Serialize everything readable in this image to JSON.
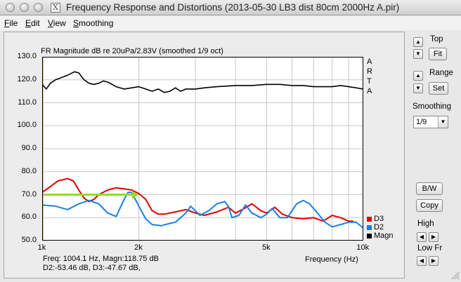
{
  "window": {
    "app_icon": "X",
    "title": "Frequency Response and Distortions (2013-05-30 LB3 dist 80cm 2000Hz A.pir)"
  },
  "menu": [
    {
      "key": "F",
      "rest": "ile"
    },
    {
      "key": "E",
      "rest": "dit"
    },
    {
      "key": "V",
      "rest": "iew"
    },
    {
      "key": "S",
      "rest": "moothing"
    }
  ],
  "plot_header": "FR Magnitude dB re 20uPa/2.83V (smoothed 1/9 oct)",
  "arta": [
    "A",
    "R",
    "T",
    "A"
  ],
  "legend": [
    {
      "label": "D3",
      "color": "#e00000"
    },
    {
      "label": "D2",
      "color": "#1a7fe0"
    },
    {
      "label": "Magn",
      "color": "#000000"
    }
  ],
  "readout": {
    "line1": "Freq: 1004.1 Hz, Magn:118.75 dB",
    "line2": "D2:-53.46 dB, D3:-47.67 dB,"
  },
  "x_axis_title": "Frequency (Hz)",
  "controls": {
    "top_label": "Top",
    "fit_button": "Fit",
    "range_label": "Range",
    "set_button": "Set",
    "smoothing_label": "Smoothing",
    "smoothing_value": "1/9",
    "bw_button": "B/W",
    "copy_button": "Copy",
    "high_label": "High",
    "low_label": "Low Fr"
  },
  "chart_data": {
    "type": "line",
    "title": "FR Magnitude dB re 20uPa/2.83V (smoothed 1/9 oct)",
    "xlabel": "Frequency (Hz)",
    "ylabel": "",
    "xscale": "log",
    "xlim": [
      1000,
      10000
    ],
    "ylim": [
      50,
      130
    ],
    "yticks": [
      50,
      60,
      70,
      80,
      90,
      100,
      110,
      120,
      130
    ],
    "ytick_labels": [
      "50.0",
      "60.0",
      "70.0",
      "80.0",
      "90.0",
      "100.0",
      "110.0",
      "120.0",
      "130.0"
    ],
    "xtick_labels": [
      {
        "x": 1000,
        "label": "1k"
      },
      {
        "x": 2000,
        "label": "2k"
      },
      {
        "x": 5000,
        "label": "5k"
      },
      {
        "x": 10000,
        "label": "10k"
      }
    ],
    "grid": true,
    "legend_position": "bottom-right",
    "series": [
      {
        "name": "Magn",
        "color": "#000000",
        "points": [
          [
            1000,
            118
          ],
          [
            1030,
            116
          ],
          [
            1060,
            118.5
          ],
          [
            1100,
            120
          ],
          [
            1150,
            121
          ],
          [
            1200,
            122
          ],
          [
            1260,
            123.5
          ],
          [
            1300,
            123
          ],
          [
            1350,
            120
          ],
          [
            1400,
            118.5
          ],
          [
            1450,
            118
          ],
          [
            1500,
            118.5
          ],
          [
            1550,
            119.5
          ],
          [
            1600,
            119
          ],
          [
            1700,
            117
          ],
          [
            1800,
            116
          ],
          [
            1900,
            116.5
          ],
          [
            2000,
            117
          ],
          [
            2100,
            116
          ],
          [
            2200,
            115
          ],
          [
            2300,
            116
          ],
          [
            2400,
            114.5
          ],
          [
            2500,
            115
          ],
          [
            2600,
            116.5
          ],
          [
            2700,
            115
          ],
          [
            2800,
            116
          ],
          [
            3000,
            116
          ],
          [
            3200,
            116.5
          ],
          [
            3500,
            117
          ],
          [
            4000,
            117.5
          ],
          [
            4500,
            117.5
          ],
          [
            5000,
            118
          ],
          [
            5500,
            118
          ],
          [
            6000,
            117.5
          ],
          [
            6500,
            117.5
          ],
          [
            7000,
            117
          ],
          [
            7500,
            117
          ],
          [
            8000,
            117
          ],
          [
            8500,
            117.5
          ],
          [
            9000,
            117
          ],
          [
            9500,
            116.5
          ],
          [
            10000,
            116
          ]
        ]
      },
      {
        "name": "D3",
        "color": "#e00000",
        "points": [
          [
            1000,
            71
          ],
          [
            1060,
            73.5
          ],
          [
            1120,
            76
          ],
          [
            1200,
            77
          ],
          [
            1250,
            76
          ],
          [
            1300,
            72
          ],
          [
            1350,
            68.5
          ],
          [
            1400,
            67
          ],
          [
            1450,
            68
          ],
          [
            1500,
            70
          ],
          [
            1600,
            72
          ],
          [
            1700,
            73
          ],
          [
            1800,
            72.5
          ],
          [
            1900,
            72
          ],
          [
            2000,
            70.5
          ],
          [
            2100,
            68
          ],
          [
            2200,
            63
          ],
          [
            2300,
            61.5
          ],
          [
            2400,
            61.5
          ],
          [
            2600,
            62.5
          ],
          [
            2800,
            63.5
          ],
          [
            3000,
            62
          ],
          [
            3200,
            61
          ],
          [
            3500,
            62.5
          ],
          [
            3800,
            64.5
          ],
          [
            4000,
            62
          ],
          [
            4200,
            63.5
          ],
          [
            4500,
            66
          ],
          [
            4800,
            63
          ],
          [
            5000,
            62
          ],
          [
            5300,
            64.5
          ],
          [
            5600,
            61.5
          ],
          [
            6000,
            60
          ],
          [
            6500,
            59.5
          ],
          [
            7000,
            60
          ],
          [
            7500,
            58.5
          ],
          [
            8000,
            61
          ],
          [
            8500,
            60
          ],
          [
            9000,
            58.5
          ],
          [
            9300,
            58.5
          ]
        ]
      },
      {
        "name": "D2",
        "color": "#1a7fe0",
        "points": [
          [
            1000,
            65.5
          ],
          [
            1100,
            65
          ],
          [
            1200,
            63.5
          ],
          [
            1300,
            66
          ],
          [
            1400,
            67.5
          ],
          [
            1500,
            66
          ],
          [
            1600,
            62
          ],
          [
            1700,
            60.5
          ],
          [
            1800,
            68
          ],
          [
            1850,
            71
          ],
          [
            1900,
            71
          ],
          [
            2000,
            65
          ],
          [
            2100,
            59.5
          ],
          [
            2200,
            57
          ],
          [
            2350,
            56.5
          ],
          [
            2500,
            57.5
          ],
          [
            2600,
            58
          ],
          [
            2800,
            62
          ],
          [
            2900,
            65
          ],
          [
            3100,
            61
          ],
          [
            3300,
            63
          ],
          [
            3500,
            66
          ],
          [
            3700,
            67
          ],
          [
            3800,
            65
          ],
          [
            3900,
            60
          ],
          [
            4100,
            61
          ],
          [
            4300,
            65.5
          ],
          [
            4500,
            62
          ],
          [
            4800,
            60
          ],
          [
            5000,
            61.5
          ],
          [
            5200,
            64
          ],
          [
            5500,
            60
          ],
          [
            5800,
            60
          ],
          [
            6200,
            66
          ],
          [
            6500,
            67.5
          ],
          [
            6800,
            66
          ],
          [
            7200,
            62
          ],
          [
            7600,
            58
          ],
          [
            8000,
            56
          ],
          [
            8500,
            57
          ],
          [
            9000,
            58
          ],
          [
            9500,
            58
          ],
          [
            10000,
            55.5
          ]
        ]
      }
    ],
    "annotation_arrow": {
      "color": "#8ddc2e",
      "x_start": 1000,
      "x_end": 2000,
      "y": 70
    }
  }
}
